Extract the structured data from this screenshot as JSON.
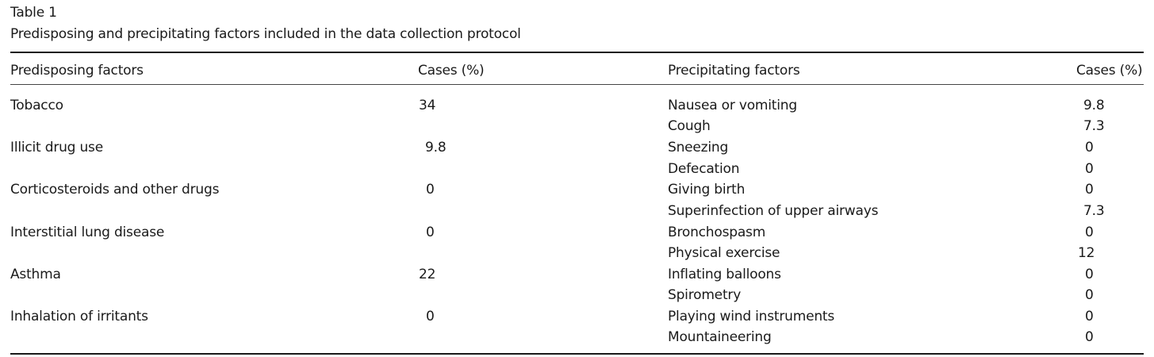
{
  "table": {
    "number": "Table 1",
    "caption": "Predisposing and precipitating factors included in the data collection protocol",
    "headers": {
      "left_factor": "Predisposing factors",
      "left_cases": "Cases (%)",
      "right_factor": "Precipitating factors",
      "right_cases": "Cases (%)"
    },
    "predisposing": [
      {
        "factor": "Tobacco",
        "cases": "34"
      },
      {
        "factor": "Illicit drug use",
        "cases": "9.8"
      },
      {
        "factor": "Corticosteroids and other drugs",
        "cases": "0"
      },
      {
        "factor": "Interstitial lung disease",
        "cases": "0"
      },
      {
        "factor": "Asthma",
        "cases": "22"
      },
      {
        "factor": "Inhalation of irritants",
        "cases": "0"
      }
    ],
    "precipitating": [
      {
        "factor": "Nausea or vomiting",
        "cases": "9.8"
      },
      {
        "factor": "Cough",
        "cases": "7.3"
      },
      {
        "factor": "Sneezing",
        "cases": "0"
      },
      {
        "factor": "Defecation",
        "cases": "0"
      },
      {
        "factor": "Giving birth",
        "cases": "0"
      },
      {
        "factor": "Superinfection of upper airways",
        "cases": "7.3"
      },
      {
        "factor": "Bronchospasm",
        "cases": "0"
      },
      {
        "factor": "Physical exercise",
        "cases": "12"
      },
      {
        "factor": "Inflating balloons",
        "cases": "0"
      },
      {
        "factor": "Spirometry",
        "cases": "0"
      },
      {
        "factor": "Playing wind instruments",
        "cases": "0"
      },
      {
        "factor": "Mountaineering",
        "cases": "0"
      }
    ]
  }
}
